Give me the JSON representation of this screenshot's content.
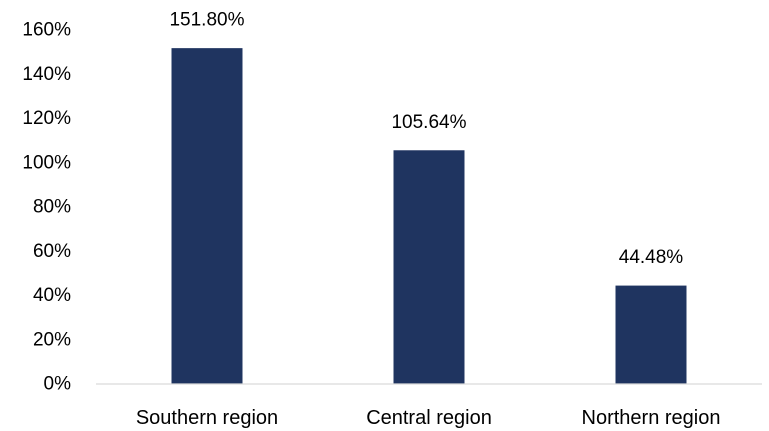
{
  "chart_data": {
    "type": "bar",
    "categories": [
      "Southern region",
      "Central region",
      "Northern region"
    ],
    "values": [
      151.8,
      105.64,
      44.48
    ],
    "value_labels": [
      "151.80%",
      "105.64%",
      "44.48%"
    ],
    "ylim": [
      0,
      160
    ],
    "yticks": [
      0,
      20,
      40,
      60,
      80,
      100,
      120,
      140,
      160
    ],
    "ytick_labels": [
      "0%",
      "20%",
      "40%",
      "60%",
      "80%",
      "100%",
      "120%",
      "140%",
      "160%"
    ],
    "bar_color": "#1f3460",
    "grid": false,
    "legend": "none"
  }
}
